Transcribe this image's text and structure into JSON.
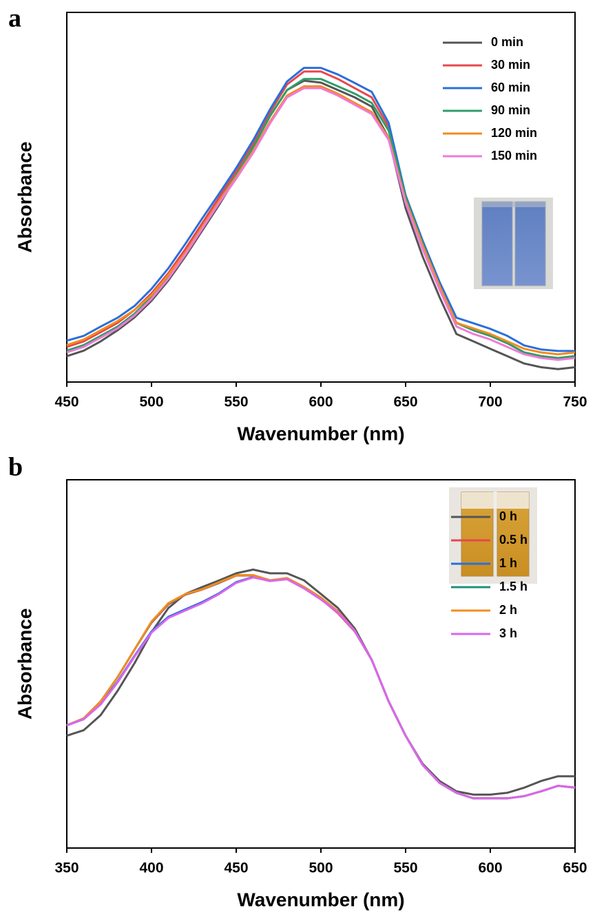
{
  "chart_data": [
    {
      "type": "line",
      "label": "a",
      "xlabel": "Wavenumber (nm)",
      "ylabel": "Absorbance",
      "x": [
        450,
        460,
        470,
        480,
        490,
        500,
        510,
        520,
        530,
        540,
        550,
        560,
        570,
        580,
        590,
        600,
        610,
        620,
        630,
        640,
        650,
        660,
        670,
        680,
        690,
        700,
        710,
        720,
        730,
        740,
        750
      ],
      "xlim": [
        450,
        750
      ],
      "xticks": [
        450,
        500,
        550,
        600,
        650,
        700,
        750
      ],
      "ylim": [
        0,
        1
      ],
      "legend": "upper right",
      "series": [
        {
          "name": "0 min",
          "color": "#555555",
          "values": [
            0.07,
            0.085,
            0.11,
            0.14,
            0.175,
            0.22,
            0.275,
            0.34,
            0.41,
            0.48,
            0.555,
            0.635,
            0.72,
            0.79,
            0.815,
            0.81,
            0.79,
            0.77,
            0.745,
            0.66,
            0.47,
            0.34,
            0.23,
            0.13,
            0.11,
            0.09,
            0.07,
            0.05,
            0.04,
            0.035,
            0.04
          ]
        },
        {
          "name": "30 min",
          "color": "#e8474c",
          "values": [
            0.095,
            0.11,
            0.135,
            0.16,
            0.195,
            0.24,
            0.295,
            0.36,
            0.43,
            0.5,
            0.57,
            0.645,
            0.73,
            0.805,
            0.84,
            0.84,
            0.82,
            0.795,
            0.77,
            0.69,
            0.5,
            0.37,
            0.255,
            0.16,
            0.14,
            0.125,
            0.105,
            0.08,
            0.07,
            0.065,
            0.07
          ]
        },
        {
          "name": "60 min",
          "color": "#2a6fdb",
          "values": [
            0.112,
            0.125,
            0.15,
            0.174,
            0.206,
            0.252,
            0.308,
            0.374,
            0.443,
            0.51,
            0.579,
            0.654,
            0.738,
            0.813,
            0.85,
            0.85,
            0.832,
            0.809,
            0.785,
            0.701,
            0.505,
            0.383,
            0.271,
            0.174,
            0.159,
            0.144,
            0.125,
            0.099,
            0.088,
            0.084,
            0.084
          ]
        },
        {
          "name": "90 min",
          "color": "#2e9e6a",
          "values": [
            0.085,
            0.1,
            0.125,
            0.15,
            0.185,
            0.23,
            0.285,
            0.35,
            0.42,
            0.49,
            0.56,
            0.635,
            0.72,
            0.79,
            0.82,
            0.82,
            0.8,
            0.78,
            0.755,
            0.68,
            0.5,
            0.375,
            0.26,
            0.16,
            0.14,
            0.125,
            0.105,
            0.08,
            0.07,
            0.065,
            0.07
          ]
        },
        {
          "name": "120 min",
          "color": "#f28c1f",
          "values": [
            0.1,
            0.115,
            0.14,
            0.165,
            0.195,
            0.235,
            0.29,
            0.35,
            0.42,
            0.49,
            0.555,
            0.625,
            0.705,
            0.775,
            0.8,
            0.8,
            0.78,
            0.755,
            0.73,
            0.66,
            0.49,
            0.37,
            0.26,
            0.16,
            0.145,
            0.13,
            0.11,
            0.09,
            0.08,
            0.075,
            0.08
          ]
        },
        {
          "name": "150 min",
          "color": "#f07ad8",
          "values": [
            0.08,
            0.095,
            0.12,
            0.145,
            0.18,
            0.225,
            0.28,
            0.345,
            0.415,
            0.485,
            0.55,
            0.62,
            0.7,
            0.77,
            0.795,
            0.795,
            0.775,
            0.75,
            0.725,
            0.655,
            0.485,
            0.36,
            0.25,
            0.15,
            0.13,
            0.115,
            0.095,
            0.075,
            0.065,
            0.06,
            0.065
          ]
        }
      ]
    },
    {
      "type": "line",
      "label": "b",
      "xlabel": "Wavenumber (nm)",
      "ylabel": "Absorbance",
      "x": [
        350,
        360,
        370,
        380,
        390,
        400,
        410,
        420,
        430,
        440,
        450,
        460,
        470,
        480,
        490,
        500,
        510,
        520,
        530,
        540,
        550,
        560,
        570,
        580,
        590,
        600,
        610,
        620,
        630,
        640,
        650
      ],
      "xlim": [
        350,
        650
      ],
      "xticks": [
        350,
        400,
        450,
        500,
        550,
        600,
        650
      ],
      "ylim": [
        0,
        1
      ],
      "legend": "upper right",
      "series": [
        {
          "name": "0 h",
          "color": "#555555",
          "values": [
            0.305,
            0.32,
            0.361,
            0.427,
            0.502,
            0.586,
            0.652,
            0.69,
            0.709,
            0.727,
            0.746,
            0.756,
            0.746,
            0.746,
            0.727,
            0.69,
            0.652,
            0.596,
            0.511,
            0.398,
            0.305,
            0.229,
            0.182,
            0.154,
            0.145,
            0.145,
            0.15,
            0.164,
            0.182,
            0.195,
            0.195
          ]
        },
        {
          "name": "0.5 h",
          "color": "#e8474c",
          "values": [
            0.333,
            0.352,
            0.398,
            0.464,
            0.539,
            0.612,
            0.662,
            0.688,
            0.702,
            0.72,
            0.74,
            0.74,
            0.726,
            0.732,
            0.708,
            0.676,
            0.638,
            0.588,
            0.511,
            0.398,
            0.305,
            0.226,
            0.177,
            0.15,
            0.135,
            0.135,
            0.135,
            0.141,
            0.154,
            0.169,
            0.164
          ]
        },
        {
          "name": "1 h",
          "color": "#2a6fdb",
          "values": [
            0.333,
            0.35,
            0.392,
            0.452,
            0.522,
            0.588,
            0.628,
            0.648,
            0.668,
            0.692,
            0.722,
            0.736,
            0.726,
            0.731,
            0.706,
            0.676,
            0.641,
            0.59,
            0.511,
            0.398,
            0.305,
            0.226,
            0.177,
            0.15,
            0.135,
            0.135,
            0.135,
            0.141,
            0.154,
            0.169,
            0.164
          ]
        },
        {
          "name": "1.5 h",
          "color": "#1f8f7a",
          "values": [
            0.333,
            0.352,
            0.398,
            0.464,
            0.539,
            0.614,
            0.664,
            0.689,
            0.703,
            0.721,
            0.741,
            0.741,
            0.727,
            0.733,
            0.709,
            0.68,
            0.643,
            0.59,
            0.511,
            0.398,
            0.305,
            0.226,
            0.177,
            0.15,
            0.135,
            0.135,
            0.135,
            0.141,
            0.154,
            0.169,
            0.164
          ]
        },
        {
          "name": "2 h",
          "color": "#f28c1f",
          "values": [
            0.333,
            0.352,
            0.398,
            0.464,
            0.539,
            0.615,
            0.665,
            0.69,
            0.703,
            0.722,
            0.741,
            0.741,
            0.727,
            0.733,
            0.709,
            0.68,
            0.643,
            0.59,
            0.511,
            0.398,
            0.305,
            0.226,
            0.177,
            0.15,
            0.135,
            0.135,
            0.135,
            0.141,
            0.154,
            0.169,
            0.164
          ]
        },
        {
          "name": "3 h",
          "color": "#d966f0",
          "values": [
            0.333,
            0.35,
            0.39,
            0.45,
            0.52,
            0.585,
            0.625,
            0.645,
            0.665,
            0.69,
            0.72,
            0.735,
            0.725,
            0.73,
            0.705,
            0.675,
            0.64,
            0.59,
            0.511,
            0.398,
            0.305,
            0.226,
            0.177,
            0.15,
            0.135,
            0.135,
            0.135,
            0.141,
            0.154,
            0.169,
            0.164
          ]
        }
      ]
    }
  ]
}
